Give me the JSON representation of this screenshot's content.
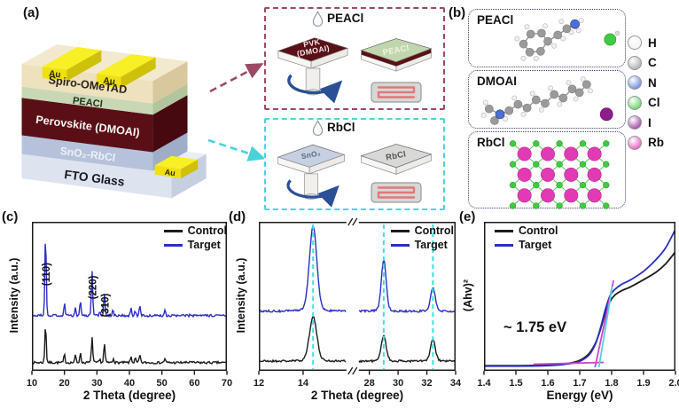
{
  "panels": {
    "a": {
      "label": "(a)",
      "stack": {
        "au": "Au",
        "layers": [
          "Spiro-OMeTAD",
          "PEACl",
          "Perovskite (DMOAI)",
          "SnO₂-RbCl",
          "FTO Glass"
        ],
        "colors": {
          "au": "#f0df12",
          "spiro": "#eee1bd",
          "peacl": "#c8d8b4",
          "perovskite": "#5a0f16",
          "sno2": "#b6c2dc",
          "fto": "#dde4f0"
        }
      },
      "process_boxes": [
        {
          "title": "PEACl",
          "border": "#a04a66",
          "spin_top": "#5a1016",
          "spin_label": "PVK|(DMOAI)",
          "spin_text": "#f2e6e6",
          "slab_top": "#c2d6ae",
          "slab_label": "PEACl",
          "slab_text": "#eef4e3",
          "slab_stripe": "#5a1016"
        },
        {
          "title": "RbCl",
          "border": "#4cd4dc",
          "spin_top": "#c6d0e2",
          "spin_label": "SnO₂",
          "spin_text": "#5d6880",
          "slab_top": "#d8d8d6",
          "slab_label": "RbCl",
          "slab_text": "#555555",
          "slab_stripe": ""
        }
      ]
    },
    "b": {
      "label": "(b)",
      "boxes": [
        {
          "title": "PEACl"
        },
        {
          "title": "DMOAI"
        },
        {
          "title": "RbCl"
        }
      ],
      "legend": [
        {
          "symbol": "H",
          "color": "#f1f1f1"
        },
        {
          "symbol": "C",
          "color": "#9a9a9a"
        },
        {
          "symbol": "N",
          "color": "#4a6fd8"
        },
        {
          "symbol": "Cl",
          "color": "#3ecb3e"
        },
        {
          "symbol": "I",
          "color": "#8c1d8c"
        },
        {
          "symbol": "Rb",
          "color": "#e23ab4"
        }
      ]
    },
    "c": {
      "label": "(c)"
    },
    "d": {
      "label": "(d)"
    },
    "e": {
      "label": "(e)"
    }
  },
  "chart_data": [
    {
      "id": "c",
      "type": "line",
      "xlabel": "2 Theta (degree)",
      "ylabel": "Intensity (a.u.)",
      "xlim": [
        10,
        70
      ],
      "xticks": [
        10,
        20,
        30,
        40,
        50,
        60,
        70
      ],
      "peak_labels": [
        {
          "text": "(110)",
          "x": 14.2,
          "y": 0.43
        },
        {
          "text": "(220)",
          "x": 28.5,
          "y": 0.52
        },
        {
          "text": "(310)",
          "x": 32.3,
          "y": 0.64
        }
      ],
      "peak_sigma": 0.2,
      "noise": 0.008,
      "series": [
        {
          "name": "Control",
          "color": "#1c1c1c",
          "offset": 0.055,
          "peaks": [
            [
              14.2,
              0.27
            ],
            [
              20.0,
              0.055
            ],
            [
              23.4,
              0.05
            ],
            [
              24.9,
              0.065
            ],
            [
              28.5,
              0.175
            ],
            [
              30.9,
              0.02
            ],
            [
              32.3,
              0.13
            ],
            [
              35.1,
              0.03
            ],
            [
              40.5,
              0.04
            ],
            [
              41.8,
              0.028
            ],
            [
              43.2,
              0.05
            ],
            [
              50.9,
              0.028
            ],
            [
              58.7,
              0.01
            ]
          ]
        },
        {
          "name": "Target",
          "color": "#2b2fc4",
          "offset": 0.37,
          "peaks": [
            [
              14.2,
              0.575
            ],
            [
              20.0,
              0.085
            ],
            [
              23.4,
              0.055
            ],
            [
              24.9,
              0.095
            ],
            [
              28.5,
              0.3
            ],
            [
              30.9,
              0.03
            ],
            [
              32.3,
              0.145
            ],
            [
              34.9,
              0.04
            ],
            [
              40.5,
              0.055
            ],
            [
              41.8,
              0.035
            ],
            [
              43.2,
              0.075
            ],
            [
              50.9,
              0.04
            ],
            [
              58.7,
              0.012
            ]
          ]
        }
      ]
    },
    {
      "id": "d",
      "type": "line",
      "xlabel": "2 Theta (degree)",
      "ylabel": "Intensity (a.u.)",
      "segments": [
        {
          "dom": [
            12,
            16
          ],
          "range": [
            0,
            0.45
          ]
        },
        {
          "dom": [
            27.2,
            34
          ],
          "range": [
            0.503,
            1
          ]
        }
      ],
      "xticks": [
        12,
        14,
        28,
        30,
        32,
        34
      ],
      "peak_sigma": 0.17,
      "noise": 0.007,
      "guides": {
        "x": [
          14.45,
          29.0,
          32.42
        ],
        "color": "#40e0dc"
      },
      "series": [
        {
          "name": "Control",
          "color": "#1c1c1c",
          "offset": 0.065,
          "peaks": [
            [
              14.45,
              0.3
            ],
            [
              29.0,
              0.175
            ],
            [
              32.42,
              0.145
            ]
          ]
        },
        {
          "name": "Target",
          "color": "#2b2fc4",
          "offset": 0.4,
          "peaks": [
            [
              14.45,
              0.575
            ],
            [
              29.0,
              0.345
            ],
            [
              32.42,
              0.155
            ]
          ]
        }
      ]
    },
    {
      "id": "e",
      "type": "line",
      "xlabel": "Energy (eV)",
      "ylabel": "(Ahv)²",
      "xlim": [
        1.4,
        2.0
      ],
      "xticks": [
        1.4,
        1.5,
        1.6,
        1.7,
        1.8,
        1.9,
        2.0
      ],
      "xtick_labels": [
        "1.4",
        "1.5",
        "1.6",
        "1.7",
        "1.8",
        "1.9",
        "2.0"
      ],
      "annotation": "~ 1.75 eV",
      "series": [
        {
          "name": "Control",
          "color": "#1c1c1c",
          "points": [
            [
              1.4,
              0.012
            ],
            [
              1.5,
              0.012
            ],
            [
              1.58,
              0.015
            ],
            [
              1.64,
              0.022
            ],
            [
              1.68,
              0.035
            ],
            [
              1.705,
              0.055
            ],
            [
              1.73,
              0.1
            ],
            [
              1.75,
              0.175
            ],
            [
              1.765,
              0.27
            ],
            [
              1.78,
              0.385
            ],
            [
              1.795,
              0.47
            ],
            [
              1.81,
              0.515
            ],
            [
              1.83,
              0.545
            ],
            [
              1.86,
              0.575
            ],
            [
              1.9,
              0.625
            ],
            [
              1.94,
              0.68
            ],
            [
              1.97,
              0.74
            ],
            [
              2.0,
              0.825
            ]
          ]
        },
        {
          "name": "Target",
          "color": "#2b2fc4",
          "points": [
            [
              1.4,
              0.008
            ],
            [
              1.5,
              0.008
            ],
            [
              1.58,
              0.01
            ],
            [
              1.64,
              0.018
            ],
            [
              1.68,
              0.03
            ],
            [
              1.705,
              0.048
            ],
            [
              1.73,
              0.09
            ],
            [
              1.75,
              0.17
            ],
            [
              1.765,
              0.28
            ],
            [
              1.78,
              0.41
            ],
            [
              1.795,
              0.51
            ],
            [
              1.81,
              0.555
            ],
            [
              1.83,
              0.59
            ],
            [
              1.86,
              0.625
            ],
            [
              1.9,
              0.685
            ],
            [
              1.94,
              0.77
            ],
            [
              1.97,
              0.855
            ],
            [
              2.0,
              0.985
            ]
          ]
        }
      ],
      "fit_lines": [
        {
          "color": "#cc44cc",
          "from": [
            1.555,
            0.022
          ],
          "to": [
            1.775,
            0.035
          ]
        },
        {
          "color": "#cc44cc",
          "from": [
            1.748,
            0.0
          ],
          "to": [
            1.806,
            0.62
          ]
        },
        {
          "color": "#57cfe0",
          "from": [
            1.76,
            0.0
          ],
          "to": [
            1.802,
            0.575
          ]
        }
      ]
    }
  ]
}
